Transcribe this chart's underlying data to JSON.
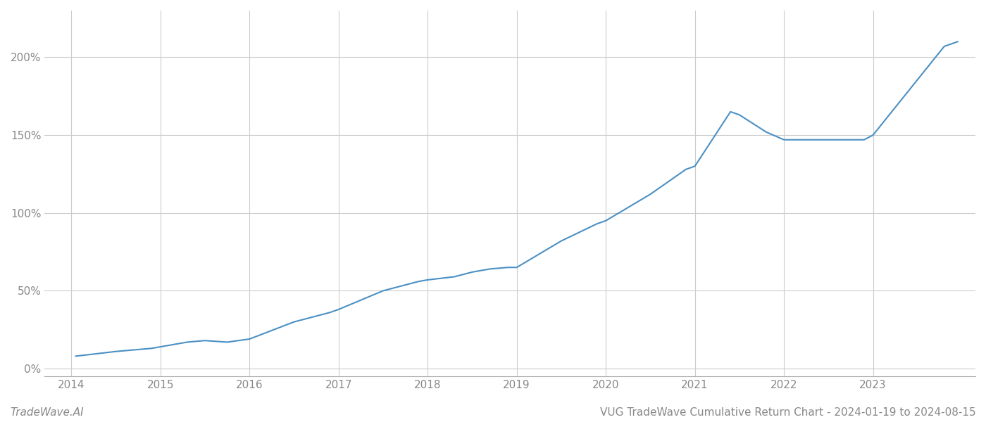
{
  "title": "VUG TradeWave Cumulative Return Chart - 2024-01-19 to 2024-08-15",
  "watermark": "TradeWave.AI",
  "line_color": "#4a90c4",
  "background_color": "#ffffff",
  "grid_color": "#cccccc",
  "x_years": [
    2014,
    2015,
    2016,
    2017,
    2018,
    2019,
    2020,
    2021,
    2022,
    2023
  ],
  "data_points": [
    [
      2014.05,
      8
    ],
    [
      2014.5,
      11
    ],
    [
      2014.9,
      13
    ],
    [
      2015.1,
      15
    ],
    [
      2015.3,
      17
    ],
    [
      2015.5,
      18
    ],
    [
      2015.75,
      17
    ],
    [
      2016.0,
      19
    ],
    [
      2016.5,
      30
    ],
    [
      2016.9,
      36
    ],
    [
      2017.0,
      38
    ],
    [
      2017.5,
      50
    ],
    [
      2017.9,
      56
    ],
    [
      2018.0,
      57
    ],
    [
      2018.3,
      59
    ],
    [
      2018.5,
      62
    ],
    [
      2018.7,
      64
    ],
    [
      2018.9,
      65
    ],
    [
      2019.0,
      65
    ],
    [
      2019.5,
      82
    ],
    [
      2019.9,
      93
    ],
    [
      2020.0,
      95
    ],
    [
      2020.5,
      112
    ],
    [
      2020.9,
      128
    ],
    [
      2021.0,
      130
    ],
    [
      2021.4,
      165
    ],
    [
      2021.5,
      163
    ],
    [
      2021.8,
      152
    ],
    [
      2022.0,
      147
    ],
    [
      2022.5,
      147
    ],
    [
      2022.75,
      147
    ],
    [
      2022.9,
      147
    ],
    [
      2023.0,
      150
    ],
    [
      2023.8,
      207
    ],
    [
      2023.95,
      210
    ]
  ],
  "ylim": [
    -5,
    230
  ],
  "yticks": [
    0,
    50,
    100,
    150,
    200
  ],
  "xlim": [
    2013.7,
    2024.15
  ],
  "line_width": 1.5,
  "title_fontsize": 11,
  "watermark_fontsize": 11,
  "tick_label_color": "#888888",
  "tick_label_fontsize": 11
}
